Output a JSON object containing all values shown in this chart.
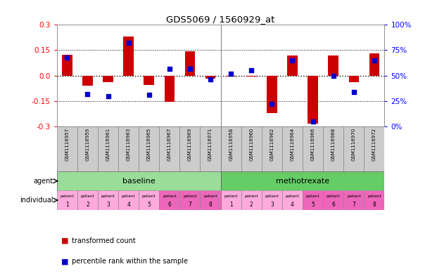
{
  "title": "GDS5069 / 1560929_at",
  "samples": [
    "GSM1116957",
    "GSM1116959",
    "GSM1116961",
    "GSM1116963",
    "GSM1116965",
    "GSM1116967",
    "GSM1116969",
    "GSM1116971",
    "GSM1116958",
    "GSM1116960",
    "GSM1116962",
    "GSM1116964",
    "GSM1116966",
    "GSM1116968",
    "GSM1116970",
    "GSM1116972"
  ],
  "transformed_counts": [
    0.125,
    -0.06,
    -0.04,
    0.23,
    -0.055,
    -0.155,
    0.145,
    -0.02,
    -0.005,
    -0.005,
    -0.22,
    0.12,
    -0.285,
    0.12,
    -0.04,
    0.13
  ],
  "percentile_ranks": [
    68,
    32,
    30,
    82,
    31,
    57,
    57,
    46,
    52,
    55,
    22,
    65,
    5,
    50,
    34,
    65
  ],
  "ylim": [
    -0.3,
    0.3
  ],
  "yticks_left": [
    -0.3,
    -0.15,
    0.0,
    0.15,
    0.3
  ],
  "yticks_right": [
    0,
    25,
    50,
    75,
    100
  ],
  "dotted_lines": [
    -0.15,
    0.0,
    0.15
  ],
  "bar_color": "#cc0000",
  "dot_color": "#0000cc",
  "bg_color": "#ffffff",
  "gsm_bg": "#cccccc",
  "agent_baseline_color": "#99dd99",
  "agent_metho_color": "#66cc66",
  "indiv_light": "#ffaadd",
  "indiv_dark": "#ee66bb",
  "label_agent": "agent",
  "label_individual": "individual",
  "legend_bar": "transformed count",
  "legend_dot": "percentile rank within the sample",
  "baseline_count": 8,
  "metho_count": 8
}
